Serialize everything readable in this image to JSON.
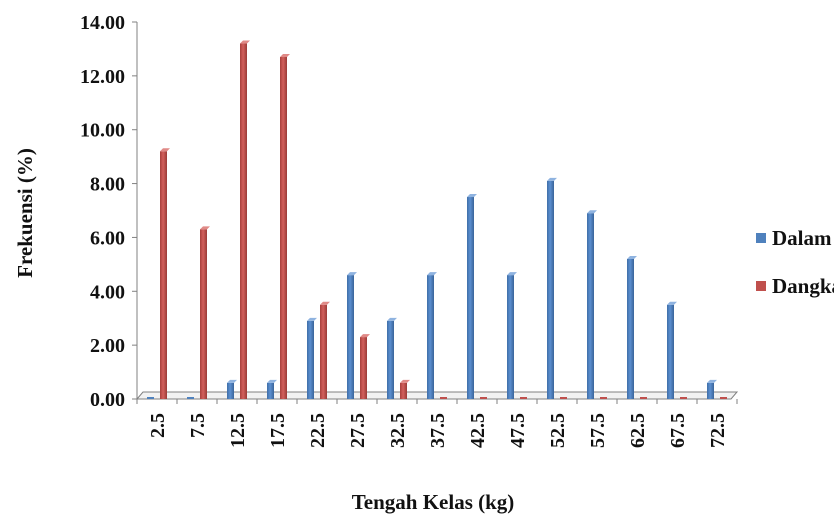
{
  "chart_data": {
    "type": "bar",
    "title": "",
    "xlabel": "Tengah Kelas (kg)",
    "ylabel": "Frekuensi (%)",
    "ylim": [
      0,
      14
    ],
    "ytick_step": 2,
    "ytick_labels": [
      "0.00",
      "2.00",
      "4.00",
      "6.00",
      "8.00",
      "10.00",
      "12.00",
      "14.00"
    ],
    "categories": [
      "2.5",
      "7.5",
      "12.5",
      "17.5",
      "22.5",
      "27.5",
      "32.5",
      "37.5",
      "42.5",
      "47.5",
      "52.5",
      "57.5",
      "62.5",
      "67.5",
      "72.5"
    ],
    "series": [
      {
        "name": "Dalam",
        "color": "#4f81bd",
        "values": [
          0.0,
          0.0,
          0.6,
          0.6,
          2.9,
          4.6,
          2.9,
          4.6,
          7.5,
          4.6,
          8.1,
          6.9,
          5.2,
          3.5,
          0.6
        ]
      },
      {
        "name": "Dangkal",
        "color": "#c0504d",
        "values": [
          9.2,
          6.3,
          13.2,
          12.7,
          3.5,
          2.3,
          0.6,
          0.0,
          0.0,
          0.0,
          0.0,
          0.0,
          0.0,
          0.0,
          0.0
        ]
      }
    ],
    "grid": false,
    "legend_position": "right"
  }
}
